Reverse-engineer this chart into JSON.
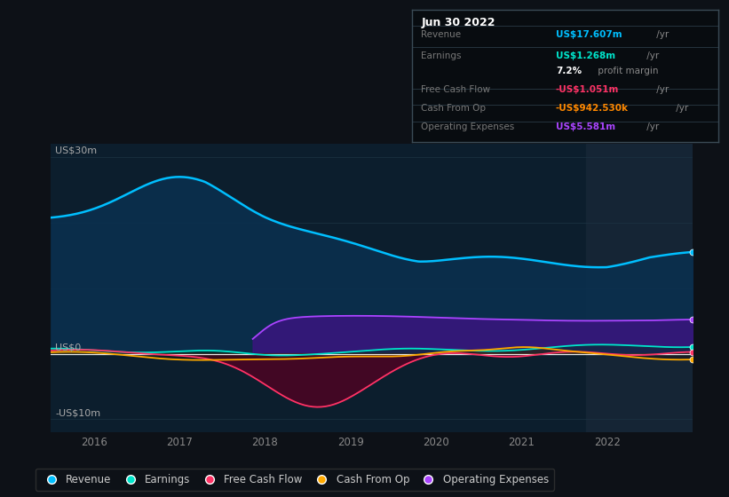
{
  "bg_color": "#0d1117",
  "plot_bg_color": "#0c1e2d",
  "highlight_bg_color": "#152535",
  "colors": {
    "revenue": "#00bfff",
    "earnings": "#00e5cc",
    "free_cash_flow": "#ff3366",
    "cash_from_op": "#ffaa00",
    "operating_expenses": "#aa44ff"
  },
  "revenue_fill": "#0a3050",
  "op_fill": "#3a1580",
  "fcf_fill_neg": "#550022",
  "ylim": [
    -12,
    32
  ],
  "xlim": [
    2015.5,
    2023.0
  ],
  "highlight_x": 2021.75,
  "x_ticks_pos": [
    2016,
    2017,
    2018,
    2019,
    2020,
    2021,
    2022
  ],
  "x_ticks_labels": [
    "2016",
    "2017",
    "2018",
    "2019",
    "2020",
    "2021",
    "2022"
  ],
  "y_labels": [
    {
      "val": 30,
      "text": "US$30m"
    },
    {
      "val": 0,
      "text": "US$0"
    },
    {
      "val": -10,
      "text": "-US$10m"
    }
  ],
  "grid_lines_y": [
    30,
    20,
    10,
    0,
    -10
  ],
  "info_title": "Jun 30 2022",
  "info_rows": [
    {
      "label": "Revenue",
      "value": "US$17.607m",
      "suffix": " /yr",
      "value_color": "#00bfff"
    },
    {
      "label": "Earnings",
      "value": "US$1.268m",
      "suffix": " /yr",
      "value_color": "#00e5cc"
    },
    {
      "label": "",
      "value": "7.2%",
      "suffix": " profit margin",
      "value_color": "#ffffff"
    },
    {
      "label": "Free Cash Flow",
      "value": "-US$1.051m",
      "suffix": " /yr",
      "value_color": "#ff3366"
    },
    {
      "label": "Cash From Op",
      "value": "-US$942.530k",
      "suffix": " /yr",
      "value_color": "#ff8800"
    },
    {
      "label": "Operating Expenses",
      "value": "US$5.581m",
      "suffix": " /yr",
      "value_color": "#aa44ff"
    }
  ],
  "legend": [
    {
      "label": "Revenue",
      "color": "#00bfff"
    },
    {
      "label": "Earnings",
      "color": "#00e5cc"
    },
    {
      "label": "Free Cash Flow",
      "color": "#ff3366"
    },
    {
      "label": "Cash From Op",
      "color": "#ffaa00"
    },
    {
      "label": "Operating Expenses",
      "color": "#aa44ff"
    }
  ]
}
